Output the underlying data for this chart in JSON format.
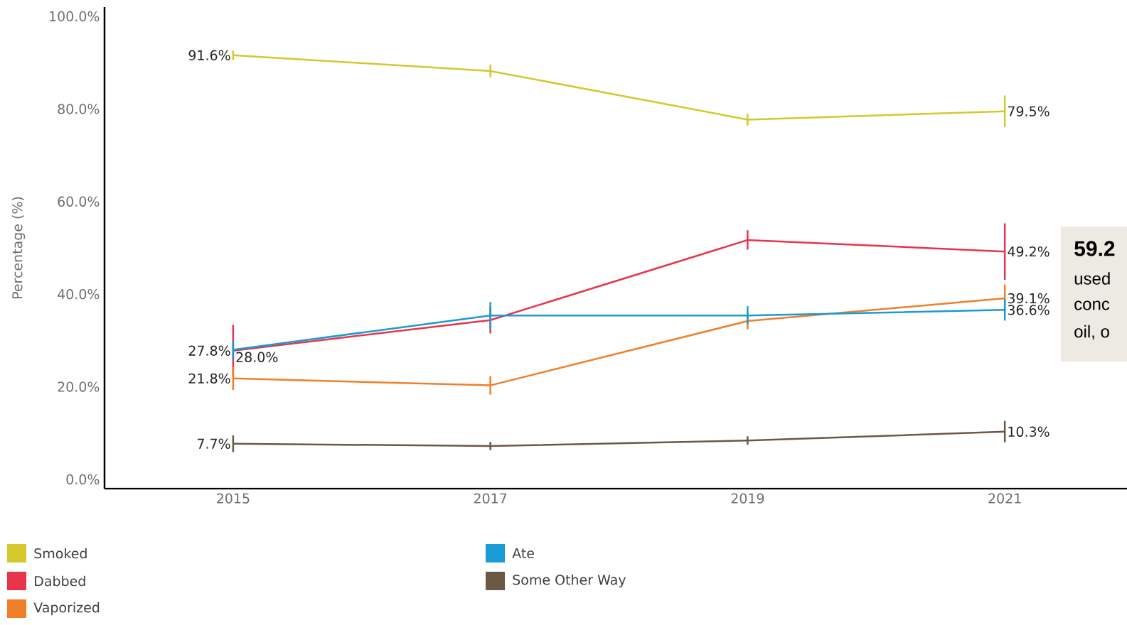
{
  "chart_data": {
    "type": "line",
    "ylabel": "Percentage (%)",
    "x": [
      2015,
      2017,
      2019,
      2021
    ],
    "xlim": [
      2014,
      2021.95
    ],
    "xticks": [
      2015,
      2017,
      2019,
      2021
    ],
    "ylim": [
      -2,
      102
    ],
    "yticks": [
      {
        "value": 0,
        "label": "0.0%"
      },
      {
        "value": 20,
        "label": "20.0%"
      },
      {
        "value": 40,
        "label": "40.0%"
      },
      {
        "value": 60,
        "label": "60.0%"
      },
      {
        "value": 80,
        "label": "80.0%"
      },
      {
        "value": 100,
        "label": "100.0%"
      }
    ],
    "grid": false,
    "legend": "bottom",
    "marker": "none",
    "line_style": "solid",
    "series": [
      {
        "name": "Smoked",
        "color": "#d4c82a",
        "values": [
          91.6,
          88.2,
          77.7,
          79.5
        ],
        "errors": [
          1,
          1.4,
          1.3,
          3.4
        ],
        "value_labels": [
          "91.6%",
          null,
          null,
          "79.5%"
        ]
      },
      {
        "name": "Dabbed",
        "color": "#e8344a",
        "values": [
          27.8,
          34.4,
          51.7,
          49.2
        ],
        "errors": [
          5.6,
          2.9,
          2.1,
          6.1
        ],
        "value_labels": [
          "27.8%",
          null,
          null,
          "49.2%"
        ]
      },
      {
        "name": "Vaporized",
        "color": "#f07f2a",
        "values": [
          21.8,
          20.3,
          34.2,
          39.1
        ],
        "errors": [
          2.5,
          2,
          1.8,
          3
        ],
        "value_labels": [
          "21.8%",
          null,
          null,
          "39.1%"
        ]
      },
      {
        "name": "Ate",
        "color": "#1a9ad6",
        "values": [
          28.0,
          35.4,
          35.4,
          36.6
        ],
        "errors": [
          2,
          2.9,
          2,
          2.3
        ],
        "value_labels": [
          "28.0%",
          null,
          null,
          "36.6%"
        ]
      },
      {
        "name": "Some Other Way",
        "color": "#6b5845",
        "values": [
          7.7,
          7.2,
          8.4,
          10.3
        ],
        "errors": [
          1.8,
          0.9,
          0.9,
          2.3
        ],
        "value_labels": [
          "7.7%",
          null,
          null,
          "10.3%"
        ]
      }
    ],
    "annotations": [
      "**59.2**",
      "used",
      "conc",
      "oil, o"
    ]
  }
}
